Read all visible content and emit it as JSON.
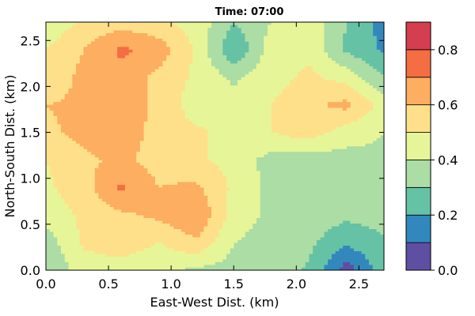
{
  "chart_data": {
    "type": "contour",
    "title": "Time: 07:00",
    "xlabel": "East-West Dist. (km)",
    "ylabel": "North-South Dist. (km)",
    "xlim": [
      0.0,
      2.7
    ],
    "ylim": [
      0.0,
      2.7
    ],
    "x_ticks": [
      "0.0",
      "0.5",
      "1.0",
      "1.5",
      "2.0",
      "2.5"
    ],
    "y_ticks": [
      "0.0",
      "0.5",
      "1.0",
      "1.5",
      "2.0",
      "2.5"
    ],
    "colorbar": {
      "levels": [
        0.0,
        0.1,
        0.2,
        0.3,
        0.4,
        0.5,
        0.6,
        0.7,
        0.8,
        0.9
      ],
      "tick_labels": [
        "0.0",
        "0.2",
        "0.4",
        "0.6",
        "0.8"
      ],
      "colors": [
        "#5e4fa2",
        "#3288bd",
        "#66c2a5",
        "#abdda4",
        "#e6f598",
        "#fee08b",
        "#fdae61",
        "#f46d43",
        "#d53e4f"
      ]
    },
    "grid_x": [
      0.0,
      0.3,
      0.6,
      0.9,
      1.2,
      1.5,
      1.8,
      2.1,
      2.4,
      2.7
    ],
    "grid_y": [
      0.0,
      0.3,
      0.6,
      0.9,
      1.2,
      1.5,
      1.8,
      2.1,
      2.4,
      2.7
    ],
    "z": [
      [
        0.32,
        0.44,
        0.46,
        0.42,
        0.38,
        0.36,
        0.34,
        0.29,
        0.04,
        0.26
      ],
      [
        0.34,
        0.52,
        0.55,
        0.5,
        0.58,
        0.4,
        0.36,
        0.32,
        0.22,
        0.28
      ],
      [
        0.44,
        0.52,
        0.58,
        0.62,
        0.7,
        0.45,
        0.38,
        0.36,
        0.32,
        0.35
      ],
      [
        0.48,
        0.56,
        0.72,
        0.6,
        0.62,
        0.48,
        0.37,
        0.34,
        0.38,
        0.35
      ],
      [
        0.5,
        0.58,
        0.62,
        0.56,
        0.52,
        0.46,
        0.36,
        0.34,
        0.36,
        0.38
      ],
      [
        0.58,
        0.63,
        0.66,
        0.56,
        0.52,
        0.46,
        0.5,
        0.55,
        0.45,
        0.4
      ],
      [
        0.6,
        0.62,
        0.66,
        0.58,
        0.44,
        0.44,
        0.5,
        0.58,
        0.63,
        0.46
      ],
      [
        0.52,
        0.63,
        0.66,
        0.57,
        0.48,
        0.38,
        0.46,
        0.52,
        0.46,
        0.3
      ],
      [
        0.5,
        0.6,
        0.72,
        0.66,
        0.48,
        0.2,
        0.45,
        0.48,
        0.28,
        0.18
      ],
      [
        0.42,
        0.52,
        0.56,
        0.52,
        0.46,
        0.3,
        0.4,
        0.46,
        0.3,
        0.16
      ]
    ]
  }
}
